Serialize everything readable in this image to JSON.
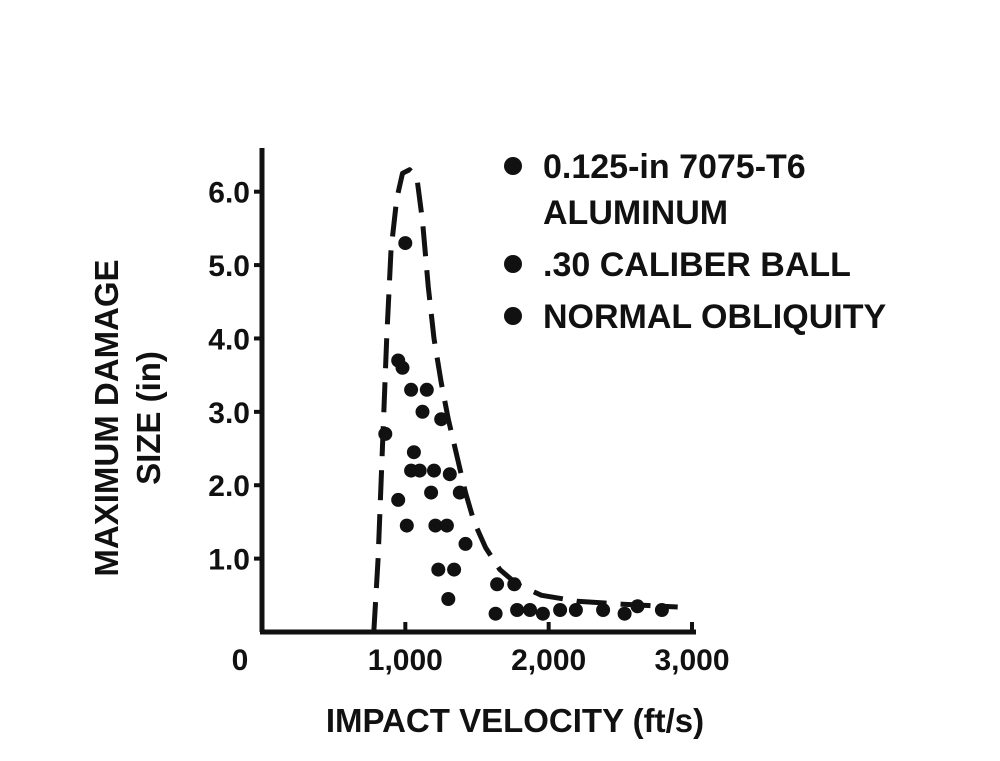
{
  "chart_data": {
    "type": "scatter",
    "xlabel": "IMPACT VELOCITY (ft/s)",
    "ylabel_lines": [
      "MAXIMUM DAMAGE",
      "SIZE (in)"
    ],
    "xlim": [
      0,
      3000
    ],
    "ylim": [
      0,
      6.5
    ],
    "x_ticks": [
      {
        "value": 0,
        "label": "0"
      },
      {
        "value": 1000,
        "label": "1,000"
      },
      {
        "value": 2000,
        "label": "2,000"
      },
      {
        "value": 3000,
        "label": "3,000"
      }
    ],
    "y_ticks": [
      {
        "value": 1.0,
        "label": "1.0"
      },
      {
        "value": 2.0,
        "label": "2.0"
      },
      {
        "value": 3.0,
        "label": "3.0"
      },
      {
        "value": 4.0,
        "label": "4.0"
      },
      {
        "value": 5.0,
        "label": "5.0"
      },
      {
        "value": 6.0,
        "label": "6.0"
      }
    ],
    "legend": {
      "placement": "top-right",
      "items": [
        {
          "lines": [
            "0.125-in 7075-T6",
            "ALUMINUM"
          ]
        },
        {
          "lines": [
            ".30 CALIBER BALL"
          ]
        },
        {
          "lines": [
            "NORMAL OBLIQUITY"
          ]
        }
      ]
    },
    "points": [
      {
        "x": 1000,
        "y": 5.3
      },
      {
        "x": 950,
        "y": 3.7
      },
      {
        "x": 980,
        "y": 3.6
      },
      {
        "x": 1040,
        "y": 3.3
      },
      {
        "x": 1150,
        "y": 3.3
      },
      {
        "x": 1120,
        "y": 3.0
      },
      {
        "x": 860,
        "y": 2.7
      },
      {
        "x": 1250,
        "y": 2.9
      },
      {
        "x": 1060,
        "y": 2.45
      },
      {
        "x": 1040,
        "y": 2.2
      },
      {
        "x": 1100,
        "y": 2.2
      },
      {
        "x": 1200,
        "y": 2.2
      },
      {
        "x": 1310,
        "y": 2.15
      },
      {
        "x": 1180,
        "y": 1.9
      },
      {
        "x": 1380,
        "y": 1.9
      },
      {
        "x": 950,
        "y": 1.8
      },
      {
        "x": 1010,
        "y": 1.45
      },
      {
        "x": 1210,
        "y": 1.45
      },
      {
        "x": 1290,
        "y": 1.45
      },
      {
        "x": 1420,
        "y": 1.2
      },
      {
        "x": 1230,
        "y": 0.85
      },
      {
        "x": 1340,
        "y": 0.85
      },
      {
        "x": 1300,
        "y": 0.45
      },
      {
        "x": 1640,
        "y": 0.65
      },
      {
        "x": 1760,
        "y": 0.65
      },
      {
        "x": 1630,
        "y": 0.25
      },
      {
        "x": 1780,
        "y": 0.3
      },
      {
        "x": 1870,
        "y": 0.3
      },
      {
        "x": 1960,
        "y": 0.25
      },
      {
        "x": 2080,
        "y": 0.3
      },
      {
        "x": 2190,
        "y": 0.3
      },
      {
        "x": 2380,
        "y": 0.3
      },
      {
        "x": 2530,
        "y": 0.25
      },
      {
        "x": 2620,
        "y": 0.35
      },
      {
        "x": 2790,
        "y": 0.3
      }
    ],
    "envelope": [
      [
        780,
        0.0
      ],
      [
        810,
        1.0
      ],
      [
        840,
        2.5
      ],
      [
        870,
        4.0
      ],
      [
        900,
        5.2
      ],
      [
        940,
        5.9
      ],
      [
        980,
        6.25
      ],
      [
        1030,
        6.3
      ],
      [
        1080,
        6.2
      ],
      [
        1120,
        5.6
      ],
      [
        1160,
        4.7
      ],
      [
        1200,
        4.0
      ],
      [
        1250,
        3.4
      ],
      [
        1300,
        2.9
      ],
      [
        1360,
        2.4
      ],
      [
        1420,
        1.9
      ],
      [
        1480,
        1.5
      ],
      [
        1560,
        1.15
      ],
      [
        1660,
        0.85
      ],
      [
        1780,
        0.65
      ],
      [
        1950,
        0.5
      ],
      [
        2200,
        0.42
      ],
      [
        2500,
        0.38
      ],
      [
        2800,
        0.35
      ],
      [
        2900,
        0.34
      ]
    ]
  }
}
